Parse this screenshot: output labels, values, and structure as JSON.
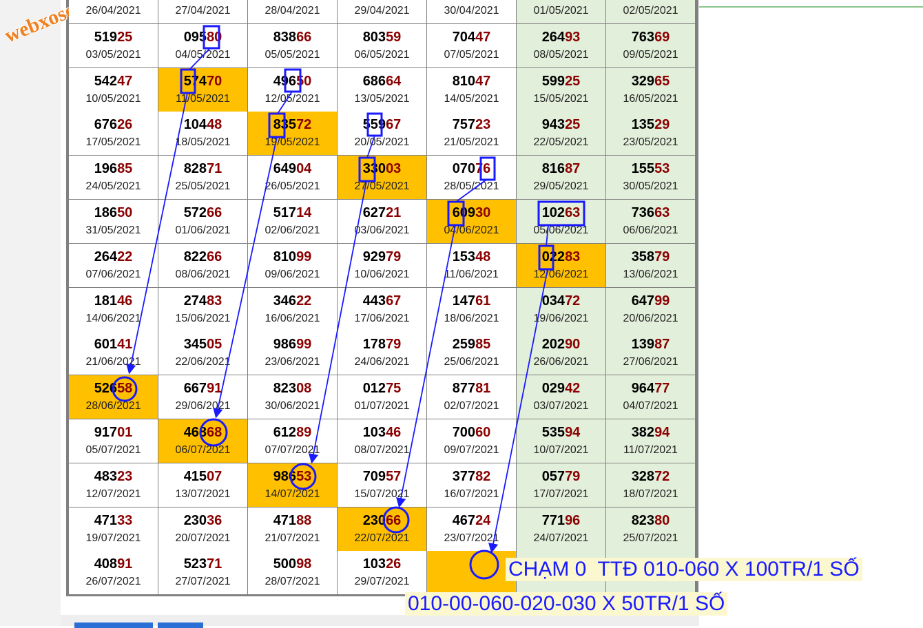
{
  "watermark": "webxoso.net",
  "table": {
    "rows": [
      [
        {
          "date": "26/04/2021"
        },
        {
          "date": "27/04/2021"
        },
        {
          "date": "28/04/2021"
        },
        {
          "date": "29/04/2021"
        },
        {
          "date": "30/04/2021"
        },
        {
          "date": "01/05/2021"
        },
        {
          "date": "02/05/2021"
        }
      ],
      [
        {
          "head": "519",
          "tail": "25",
          "date": "03/05/2021"
        },
        {
          "head": "095",
          "tail": "80",
          "date": "04/05/2021"
        },
        {
          "head": "838",
          "tail": "66",
          "date": "05/05/2021"
        },
        {
          "head": "803",
          "tail": "59",
          "date": "06/05/2021"
        },
        {
          "head": "704",
          "tail": "47",
          "date": "07/05/2021"
        },
        {
          "head": "264",
          "tail": "93",
          "date": "08/05/2021"
        },
        {
          "head": "763",
          "tail": "69",
          "date": "09/05/2021"
        }
      ],
      [
        {
          "head": "542",
          "tail": "47",
          "date": "10/05/2021"
        },
        {
          "head": "574",
          "tail": "70",
          "date": "11/05/2021",
          "highlighted": true
        },
        {
          "head": "496",
          "tail": "50",
          "date": "12/05/2021"
        },
        {
          "head": "686",
          "tail": "64",
          "date": "13/05/2021"
        },
        {
          "head": "810",
          "tail": "47",
          "date": "14/05/2021"
        },
        {
          "head": "599",
          "tail": "25",
          "date": "15/05/2021"
        },
        {
          "head": "329",
          "tail": "65",
          "date": "16/05/2021"
        }
      ],
      [
        {
          "head": "676",
          "tail": "26",
          "date": "17/05/2021"
        },
        {
          "head": "104",
          "tail": "48",
          "date": "18/05/2021"
        },
        {
          "head": "835",
          "tail": "72",
          "date": "19/05/2021",
          "highlighted": true
        },
        {
          "head": "559",
          "tail": "67",
          "date": "20/05/2021"
        },
        {
          "head": "757",
          "tail": "23",
          "date": "21/05/2021"
        },
        {
          "head": "943",
          "tail": "25",
          "date": "22/05/2021"
        },
        {
          "head": "135",
          "tail": "29",
          "date": "23/05/2021"
        }
      ],
      [
        {
          "head": "196",
          "tail": "85",
          "date": "24/05/2021"
        },
        {
          "head": "828",
          "tail": "71",
          "date": "25/05/2021"
        },
        {
          "head": "649",
          "tail": "04",
          "date": "26/05/2021"
        },
        {
          "head": "330",
          "tail": "03",
          "date": "27/05/2021",
          "highlighted": true
        },
        {
          "head": "070",
          "tail": "76",
          "date": "28/05/2021"
        },
        {
          "head": "816",
          "tail": "87",
          "date": "29/05/2021"
        },
        {
          "head": "155",
          "tail": "53",
          "date": "30/05/2021"
        }
      ],
      [
        {
          "head": "186",
          "tail": "50",
          "date": "31/05/2021"
        },
        {
          "head": "572",
          "tail": "66",
          "date": "01/06/2021"
        },
        {
          "head": "517",
          "tail": "14",
          "date": "02/06/2021"
        },
        {
          "head": "627",
          "tail": "21",
          "date": "03/06/2021"
        },
        {
          "head": "609",
          "tail": "30",
          "date": "04/06/2021",
          "highlighted": true
        },
        {
          "head": "102",
          "tail": "63",
          "date": "05/06/2021"
        },
        {
          "head": "736",
          "tail": "63",
          "date": "06/06/2021"
        }
      ],
      [
        {
          "head": "264",
          "tail": "22",
          "date": "07/06/2021"
        },
        {
          "head": "822",
          "tail": "66",
          "date": "08/06/2021"
        },
        {
          "head": "810",
          "tail": "99",
          "date": "09/06/2021"
        },
        {
          "head": "929",
          "tail": "79",
          "date": "10/06/2021"
        },
        {
          "head": "153",
          "tail": "48",
          "date": "11/06/2021"
        },
        {
          "head": "022",
          "tail": "83",
          "date": "12/06/2021",
          "highlighted": true
        },
        {
          "head": "358",
          "tail": "79",
          "date": "13/06/2021"
        }
      ],
      [
        {
          "head": "181",
          "tail": "46",
          "date": "14/06/2021"
        },
        {
          "head": "274",
          "tail": "83",
          "date": "15/06/2021"
        },
        {
          "head": "346",
          "tail": "22",
          "date": "16/06/2021"
        },
        {
          "head": "443",
          "tail": "67",
          "date": "17/06/2021"
        },
        {
          "head": "147",
          "tail": "61",
          "date": "18/06/2021"
        },
        {
          "head": "034",
          "tail": "72",
          "date": "19/06/2021"
        },
        {
          "head": "647",
          "tail": "99",
          "date": "20/06/2021"
        }
      ],
      [
        {
          "head": "601",
          "tail": "41",
          "date": "21/06/2021"
        },
        {
          "head": "345",
          "tail": "05",
          "date": "22/06/2021"
        },
        {
          "head": "986",
          "tail": "99",
          "date": "23/06/2021"
        },
        {
          "head": "178",
          "tail": "79",
          "date": "24/06/2021"
        },
        {
          "head": "259",
          "tail": "85",
          "date": "25/06/2021"
        },
        {
          "head": "202",
          "tail": "90",
          "date": "26/06/2021"
        },
        {
          "head": "139",
          "tail": "87",
          "date": "27/06/2021"
        }
      ],
      [
        {
          "head": "526",
          "tail": "58",
          "date": "28/06/2021",
          "highlighted": true
        },
        {
          "head": "667",
          "tail": "91",
          "date": "29/06/2021"
        },
        {
          "head": "823",
          "tail": "08",
          "date": "30/06/2021"
        },
        {
          "head": "012",
          "tail": "75",
          "date": "01/07/2021"
        },
        {
          "head": "877",
          "tail": "81",
          "date": "02/07/2021"
        },
        {
          "head": "029",
          "tail": "42",
          "date": "03/07/2021"
        },
        {
          "head": "964",
          "tail": "77",
          "date": "04/07/2021"
        }
      ],
      [
        {
          "head": "917",
          "tail": "01",
          "date": "05/07/2021"
        },
        {
          "head": "468",
          "tail": "68",
          "date": "06/07/2021",
          "highlighted": true
        },
        {
          "head": "612",
          "tail": "89",
          "date": "07/07/2021"
        },
        {
          "head": "103",
          "tail": "46",
          "date": "08/07/2021"
        },
        {
          "head": "700",
          "tail": "60",
          "date": "09/07/2021"
        },
        {
          "head": "535",
          "tail": "94",
          "date": "10/07/2021"
        },
        {
          "head": "382",
          "tail": "94",
          "date": "11/07/2021"
        }
      ],
      [
        {
          "head": "483",
          "tail": "23",
          "date": "12/07/2021"
        },
        {
          "head": "415",
          "tail": "07",
          "date": "13/07/2021"
        },
        {
          "head": "986",
          "tail": "53",
          "date": "14/07/2021",
          "highlighted": true
        },
        {
          "head": "709",
          "tail": "57",
          "date": "15/07/2021"
        },
        {
          "head": "377",
          "tail": "82",
          "date": "16/07/2021"
        },
        {
          "head": "057",
          "tail": "79",
          "date": "17/07/2021"
        },
        {
          "head": "328",
          "tail": "72",
          "date": "18/07/2021"
        }
      ],
      [
        {
          "head": "471",
          "tail": "33",
          "date": "19/07/2021"
        },
        {
          "head": "230",
          "tail": "36",
          "date": "20/07/2021"
        },
        {
          "head": "471",
          "tail": "88",
          "date": "21/07/2021"
        },
        {
          "head": "230",
          "tail": "66",
          "date": "22/07/2021",
          "highlighted": true
        },
        {
          "head": "467",
          "tail": "24",
          "date": "23/07/2021"
        },
        {
          "head": "771",
          "tail": "96",
          "date": "24/07/2021"
        },
        {
          "head": "823",
          "tail": "80",
          "date": "25/07/2021"
        }
      ],
      [
        {
          "head": "408",
          "tail": "91",
          "date": "26/07/2021"
        },
        {
          "head": "523",
          "tail": "71",
          "date": "27/07/2021"
        },
        {
          "head": "500",
          "tail": "98",
          "date": "28/07/2021"
        },
        {
          "head": "103",
          "tail": "26",
          "date": "29/07/2021"
        },
        {
          "highlighted": true
        }
      ]
    ]
  },
  "annotations": {
    "line1": "CHẠM 0  TTĐ 010-060 X 100TR/1 SỐ",
    "line2": "010-00-060-020-030 X 50TR/1 SỐ"
  }
}
